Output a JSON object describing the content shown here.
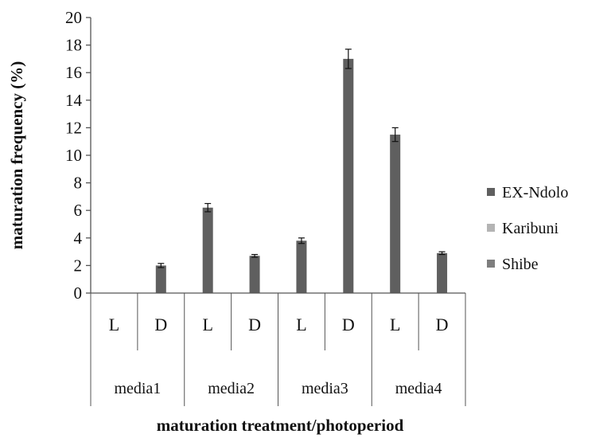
{
  "chart_data": {
    "type": "bar",
    "title": "",
    "xlabel": "maturation treatment/photoperiod",
    "ylabel": "maturation frequency (%)",
    "ylim": [
      0,
      20
    ],
    "yticks": [
      0,
      2,
      4,
      6,
      8,
      10,
      12,
      14,
      16,
      18,
      20
    ],
    "grid": false,
    "legend_position": "right",
    "categories": [
      "L",
      "D",
      "L",
      "D",
      "L",
      "D",
      "L",
      "D"
    ],
    "groups": [
      {
        "label": "media1",
        "span": 2
      },
      {
        "label": "media2",
        "span": 2
      },
      {
        "label": "media3",
        "span": 2
      },
      {
        "label": "media4",
        "span": 2
      }
    ],
    "series": [
      {
        "name": "EX-Ndolo",
        "color": "#5f5f5f",
        "values": [
          0,
          2.0,
          6.2,
          2.7,
          3.8,
          17.0,
          11.5,
          2.9
        ],
        "errors": [
          0,
          0.15,
          0.3,
          0.1,
          0.2,
          0.7,
          0.5,
          0.1
        ]
      },
      {
        "name": "Karibuni",
        "color": "#b4b4b4",
        "values": [
          0,
          0,
          0,
          0,
          0,
          0,
          0,
          0
        ],
        "errors": [
          0,
          0,
          0,
          0,
          0,
          0,
          0,
          0
        ]
      },
      {
        "name": "Shibe",
        "color": "#7e7e7e",
        "values": [
          0,
          0,
          0,
          0,
          0,
          0,
          0,
          0
        ],
        "errors": [
          0,
          0,
          0,
          0,
          0,
          0,
          0,
          0
        ]
      }
    ]
  }
}
